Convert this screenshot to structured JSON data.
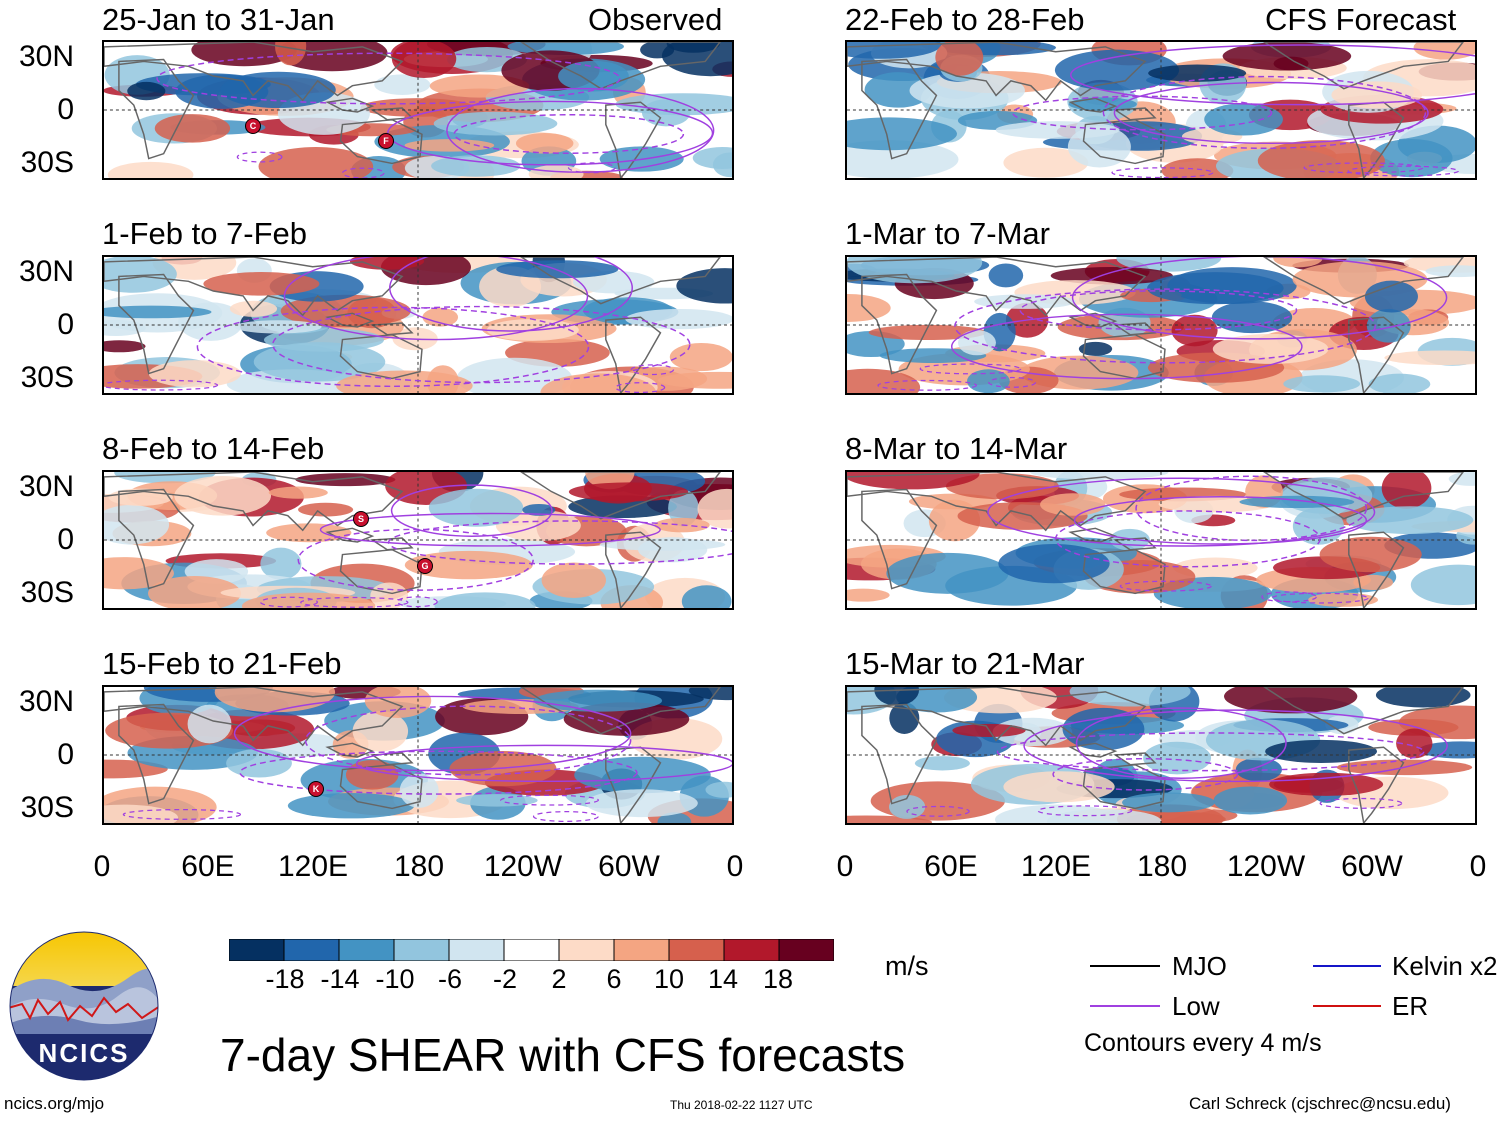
{
  "title": "7-day SHEAR with CFS forecasts",
  "logo_text": "NCICS",
  "footer": {
    "url": "ncics.org/mjo",
    "timestamp": "Thu 2018-02-22 1127 UTC",
    "author": "Carl Schreck (cjschrec@ncsu.edu)"
  },
  "observed_label": "Observed",
  "forecast_label": "CFS Forecast",
  "lat_labels": [
    "30N",
    "0",
    "30S"
  ],
  "lon_labels": [
    "0",
    "60E",
    "120E",
    "180",
    "120W",
    "60W",
    "0"
  ],
  "panels": {
    "observed": [
      {
        "period": "25-Jan to 31-Jan",
        "storms": [
          "C",
          "F"
        ]
      },
      {
        "period": "1-Feb to 7-Feb",
        "storms": []
      },
      {
        "period": "8-Feb to 14-Feb",
        "storms": [
          "S",
          "G"
        ]
      },
      {
        "period": "15-Feb to 21-Feb",
        "storms": [
          "K"
        ]
      }
    ],
    "forecast": [
      {
        "period": "22-Feb to 28-Feb"
      },
      {
        "period": "1-Mar to 7-Mar"
      },
      {
        "period": "8-Mar to 14-Mar"
      },
      {
        "period": "15-Mar to 21-Mar"
      }
    ]
  },
  "colorbar": {
    "labels": [
      "-18",
      "-14",
      "-10",
      "-6",
      "-2",
      "2",
      "6",
      "10",
      "14",
      "18"
    ],
    "colors": [
      "#053061",
      "#2166ac",
      "#4393c3",
      "#92c5de",
      "#d1e5f0",
      "#ffffff",
      "#fddbc7",
      "#f4a582",
      "#d6604d",
      "#b2182b",
      "#67001f"
    ],
    "unit": "m/s"
  },
  "legend": {
    "items": [
      {
        "label": "MJO",
        "color": "#000000"
      },
      {
        "label": "Kelvin x2",
        "color": "#1515c8"
      },
      {
        "label": "Low",
        "color": "#a040e0"
      },
      {
        "label": "ER",
        "color": "#d01010"
      }
    ],
    "note": "Contours every 4 m/s"
  }
}
